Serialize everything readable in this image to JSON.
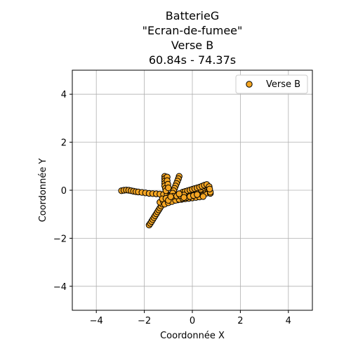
{
  "chart_data": {
    "type": "scatter",
    "title_lines": [
      "BatterieG",
      "\"Ecran-de-fumee\"",
      "Verse B",
      "60.84s - 74.37s"
    ],
    "xlabel": "Coordonnée X",
    "ylabel": "Coordonnée Y",
    "xlim": [
      -5,
      5
    ],
    "ylim": [
      -5,
      5
    ],
    "xticks": [
      -4,
      -2,
      0,
      2,
      4
    ],
    "yticks": [
      -4,
      -2,
      0,
      2,
      4
    ],
    "xtick_labels": [
      "−4",
      "−2",
      "0",
      "2",
      "4"
    ],
    "ytick_labels": [
      "−4",
      "−2",
      "0",
      "2",
      "4"
    ],
    "grid": true,
    "legend_position": "top-right",
    "series": [
      {
        "name": "Verse B",
        "color": "#f5a623",
        "edge_color": "#000000",
        "points": [
          [
            -2.95,
            -0.02
          ],
          [
            -2.85,
            0.0
          ],
          [
            -2.75,
            0.01
          ],
          [
            -2.65,
            0.0
          ],
          [
            -2.55,
            -0.02
          ],
          [
            -2.45,
            -0.04
          ],
          [
            -2.35,
            -0.06
          ],
          [
            -2.25,
            -0.07
          ],
          [
            -2.1,
            -0.09
          ],
          [
            -1.95,
            -0.11
          ],
          [
            -1.8,
            -0.13
          ],
          [
            -1.65,
            -0.14
          ],
          [
            -1.5,
            -0.15
          ],
          [
            -1.35,
            -0.16
          ],
          [
            -1.2,
            -0.17
          ],
          [
            -1.05,
            -0.18
          ],
          [
            -0.9,
            -0.19
          ],
          [
            -0.75,
            -0.2
          ],
          [
            -0.6,
            -0.2
          ],
          [
            -0.45,
            -0.19
          ],
          [
            -0.3,
            -0.18
          ],
          [
            -0.15,
            -0.16
          ],
          [
            0.0,
            -0.14
          ],
          [
            0.15,
            -0.13
          ],
          [
            0.3,
            -0.12
          ],
          [
            0.45,
            -0.12
          ],
          [
            0.6,
            -0.12
          ],
          [
            0.75,
            -0.13
          ],
          [
            -0.7,
            -0.28
          ],
          [
            -0.55,
            -0.24
          ],
          [
            -0.4,
            -0.2
          ],
          [
            -0.25,
            -0.16
          ],
          [
            -0.1,
            -0.12
          ],
          [
            0.05,
            -0.08
          ],
          [
            0.2,
            -0.04
          ],
          [
            0.35,
            0.0
          ],
          [
            0.5,
            0.04
          ],
          [
            0.6,
            0.08
          ],
          [
            0.65,
            0.12
          ],
          [
            -0.55,
            -0.32
          ],
          [
            -0.4,
            -0.26
          ],
          [
            -0.25,
            -0.2
          ],
          [
            -0.1,
            -0.14
          ],
          [
            0.05,
            -0.08
          ],
          [
            0.2,
            -0.02
          ],
          [
            0.35,
            0.04
          ],
          [
            0.5,
            0.1
          ],
          [
            0.55,
            0.16
          ],
          [
            0.5,
            0.2
          ],
          [
            -1.15,
            0.58
          ],
          [
            -1.15,
            0.48
          ],
          [
            -1.15,
            0.38
          ],
          [
            -1.15,
            0.28
          ],
          [
            -1.15,
            0.18
          ],
          [
            -1.12,
            0.08
          ],
          [
            -1.1,
            -0.02
          ],
          [
            -1.05,
            0.55
          ],
          [
            -1.05,
            0.4
          ],
          [
            -1.02,
            0.25
          ],
          [
            -1.0,
            0.1
          ],
          [
            -0.55,
            0.58
          ],
          [
            -0.58,
            0.48
          ],
          [
            -0.62,
            0.38
          ],
          [
            -0.66,
            0.28
          ],
          [
            -0.7,
            0.18
          ],
          [
            -0.74,
            0.08
          ],
          [
            -0.78,
            -0.02
          ],
          [
            -0.82,
            -0.12
          ],
          [
            -1.8,
            -1.45
          ],
          [
            -1.75,
            -1.38
          ],
          [
            -1.7,
            -1.3
          ],
          [
            -1.65,
            -1.22
          ],
          [
            -1.6,
            -1.14
          ],
          [
            -1.55,
            -1.06
          ],
          [
            -1.5,
            -0.98
          ],
          [
            -1.45,
            -0.9
          ],
          [
            -1.4,
            -0.82
          ],
          [
            -1.35,
            -0.74
          ],
          [
            -1.3,
            -0.66
          ],
          [
            -1.25,
            -0.58
          ],
          [
            -1.2,
            -0.5
          ],
          [
            -1.15,
            -0.44
          ],
          [
            -1.05,
            -0.4
          ],
          [
            -0.95,
            -0.37
          ],
          [
            -0.85,
            -0.35
          ],
          [
            -0.75,
            -0.33
          ],
          [
            -1.35,
            -0.5
          ],
          [
            -1.2,
            -0.48
          ],
          [
            -1.05,
            -0.46
          ],
          [
            -0.9,
            -0.44
          ],
          [
            -0.75,
            -0.42
          ],
          [
            -0.6,
            -0.4
          ],
          [
            -0.45,
            -0.38
          ],
          [
            -0.3,
            -0.36
          ],
          [
            -0.15,
            -0.34
          ],
          [
            0.0,
            -0.32
          ],
          [
            0.15,
            -0.3
          ],
          [
            0.3,
            -0.28
          ],
          [
            0.45,
            -0.26
          ],
          [
            -1.15,
            -0.58
          ],
          [
            -1.0,
            -0.52
          ],
          [
            -0.85,
            -0.47
          ],
          [
            -0.7,
            -0.42
          ],
          [
            -0.55,
            -0.38
          ],
          [
            -0.4,
            -0.34
          ],
          [
            -0.25,
            -0.3
          ],
          [
            -0.1,
            -0.26
          ],
          [
            0.05,
            -0.22
          ],
          [
            0.2,
            -0.18
          ],
          [
            -0.4,
            -0.08
          ],
          [
            -0.3,
            -0.05
          ],
          [
            -0.2,
            -0.02
          ],
          [
            -0.1,
            0.01
          ],
          [
            0.0,
            0.04
          ],
          [
            0.1,
            0.07
          ],
          [
            0.2,
            0.1
          ],
          [
            0.3,
            0.13
          ],
          [
            0.4,
            0.17
          ],
          [
            0.5,
            0.21
          ],
          [
            0.6,
            0.24
          ],
          [
            -0.95,
            -0.26
          ],
          [
            -0.8,
            -0.25
          ],
          [
            -0.65,
            -0.24
          ],
          [
            -0.5,
            -0.22
          ],
          [
            -0.35,
            -0.2
          ],
          [
            -1.25,
            -0.36
          ],
          [
            -1.1,
            -0.34
          ],
          [
            -1.0,
            -0.42
          ],
          [
            -0.9,
            -0.27
          ],
          [
            -0.55,
            -0.15
          ],
          [
            -0.35,
            -0.3
          ],
          [
            0.7,
            0.15
          ],
          [
            0.75,
            -0.08
          ],
          [
            0.72,
            0.05
          ]
        ]
      }
    ]
  }
}
